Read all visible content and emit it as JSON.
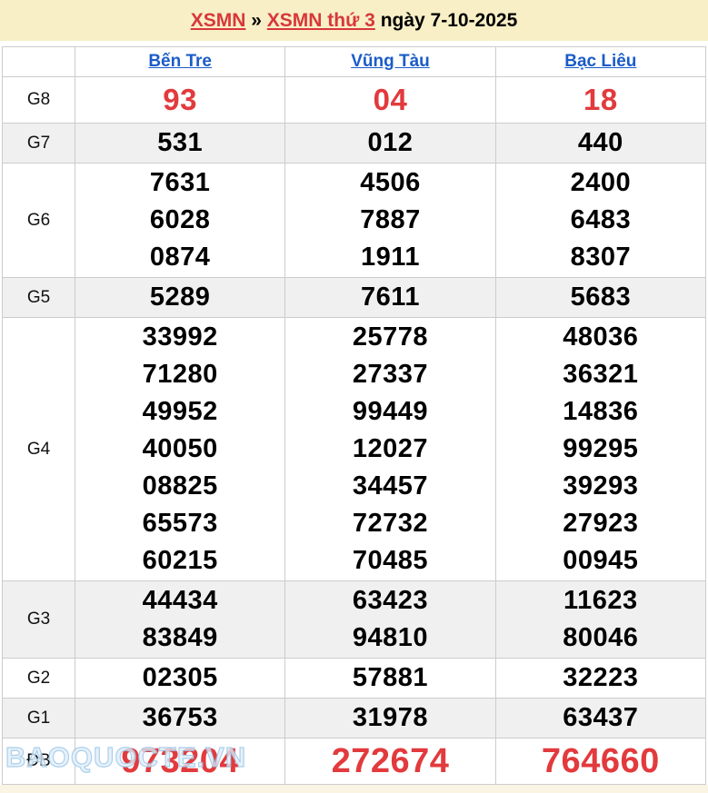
{
  "header": {
    "region_link": "XSMN",
    "separator": "»",
    "draw_link": "XSMN thứ 3",
    "date_label": "ngày 7-10-2025"
  },
  "table": {
    "columns": [
      "Bến Tre",
      "Vũng Tàu",
      "Bạc Liêu"
    ],
    "rows": [
      {
        "label": "G8",
        "highlight": true,
        "values": [
          [
            "93"
          ],
          [
            "04"
          ],
          [
            "18"
          ]
        ]
      },
      {
        "label": "G7",
        "values": [
          [
            "531"
          ],
          [
            "012"
          ],
          [
            "440"
          ]
        ]
      },
      {
        "label": "G6",
        "values": [
          [
            "7631",
            "6028",
            "0874"
          ],
          [
            "4506",
            "7887",
            "1911"
          ],
          [
            "2400",
            "6483",
            "8307"
          ]
        ]
      },
      {
        "label": "G5",
        "values": [
          [
            "5289"
          ],
          [
            "7611"
          ],
          [
            "5683"
          ]
        ]
      },
      {
        "label": "G4",
        "values": [
          [
            "33992",
            "71280",
            "49952",
            "40050",
            "08825",
            "65573",
            "60215"
          ],
          [
            "25778",
            "27337",
            "99449",
            "12027",
            "34457",
            "72732",
            "70485"
          ],
          [
            "48036",
            "36321",
            "14836",
            "99295",
            "39293",
            "27923",
            "00945"
          ]
        ]
      },
      {
        "label": "G3",
        "values": [
          [
            "44434",
            "83849"
          ],
          [
            "63423",
            "94810"
          ],
          [
            "11623",
            "80046"
          ]
        ]
      },
      {
        "label": "G2",
        "values": [
          [
            "02305"
          ],
          [
            "57881"
          ],
          [
            "32223"
          ]
        ]
      },
      {
        "label": "G1",
        "values": [
          [
            "36753"
          ],
          [
            "31978"
          ],
          [
            "63437"
          ]
        ]
      },
      {
        "label": "ĐB",
        "highlight": true,
        "values": [
          [
            "973204"
          ],
          [
            "272674"
          ],
          [
            "764660"
          ]
        ]
      }
    ]
  },
  "watermark": "BAOQUOCTE.VN",
  "colors": {
    "accent_red": "#e23a3d",
    "link_blue": "#1a5cc8",
    "header_band": "#f8efc6",
    "alt_row": "#f0f0f0"
  }
}
